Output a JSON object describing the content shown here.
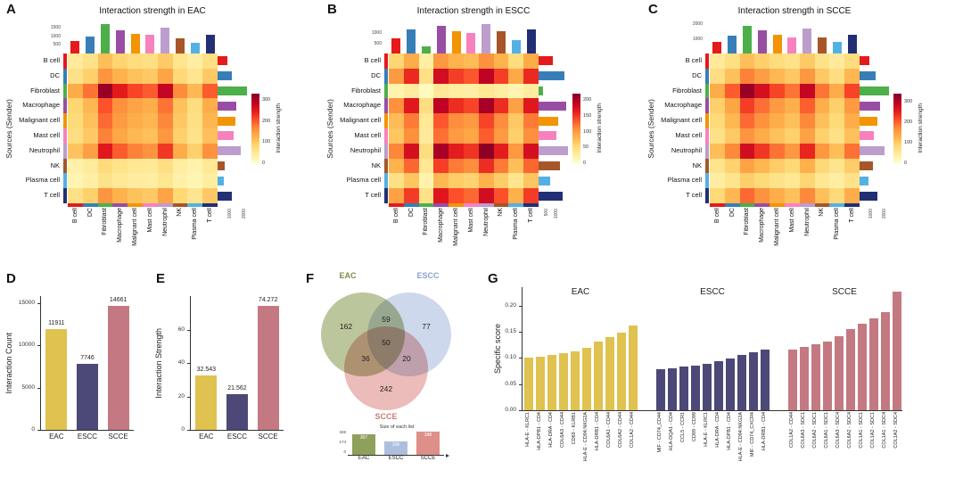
{
  "panel_letters": {
    "A": "A",
    "B": "B",
    "C": "C",
    "D": "D",
    "E": "E",
    "F": "F",
    "G": "G"
  },
  "cell_types": [
    {
      "name": "B cell",
      "color": "#E41A1C"
    },
    {
      "name": "DC",
      "color": "#377EB8"
    },
    {
      "name": "Fibroblast",
      "color": "#4DAF4A"
    },
    {
      "name": "Macrophage",
      "color": "#984EA3"
    },
    {
      "name": "Malignant cell",
      "color": "#F29403"
    },
    {
      "name": "Mast cell",
      "color": "#F781BF"
    },
    {
      "name": "Neutrophil",
      "color": "#BC9DCC"
    },
    {
      "name": "NK",
      "color": "#A65628"
    },
    {
      "name": "Plasma cell",
      "color": "#54B0E4"
    },
    {
      "name": "T cell",
      "color": "#222F75"
    }
  ],
  "heatmap_palette": [
    "#ffffcc",
    "#ffeda0",
    "#fed976",
    "#feb24c",
    "#fd8d3c",
    "#fc4e2a",
    "#e31a1c",
    "#bd0026",
    "#800026"
  ],
  "group_colors": {
    "EAC": "#DFC24F",
    "ESCC": "#4C4877",
    "SCCE": "#C47982"
  },
  "venn_colors": {
    "EAC": "#8FA05A",
    "ESCC": "#AEBEDF",
    "SCCE": "#DE8F8A"
  },
  "venn_label_colors": {
    "EAC": "#7C8C49",
    "ESCC": "#8DA0CC",
    "SCCE": "#C97B76"
  },
  "chart_data": [
    {
      "id": "A",
      "type": "heatmap",
      "title": "Interaction strength in EAC",
      "ylabel": "Sources (Sender)",
      "rows": [
        "B cell",
        "DC",
        "Fibroblast",
        "Macrophage",
        "Malignant cell",
        "Mast cell",
        "Neutrophil",
        "NK",
        "Plasma cell",
        "T cell"
      ],
      "cols": [
        "B cell",
        "DC",
        "Fibroblast",
        "Macrophage",
        "Malignant cell",
        "Mast cell",
        "Neutrophil",
        "NK",
        "Plasma cell",
        "T cell"
      ],
      "legend": {
        "title": "Interaction strength",
        "ticks": [
          300,
          200,
          100,
          0
        ]
      },
      "vmax": 330,
      "top_axis_ticks": [
        1500,
        1000,
        500
      ],
      "right_axis_ticks": [
        1000,
        2000
      ],
      "matrix": [
        [
          46,
          64,
          110,
          87,
          75,
          69,
          98,
          58,
          40,
          69
        ],
        [
          66,
          91,
          157,
          124,
          107,
          99,
          140,
          83,
          58,
          99
        ],
        [
          132,
          182,
          314,
          248,
          215,
          198,
          281,
          165,
          116,
          198
        ],
        [
          86,
          118,
          204,
          161,
          139,
          129,
          182,
          107,
          75,
          129
        ],
        [
          79,
          109,
          188,
          149,
          129,
          119,
          168,
          99,
          69,
          119
        ],
        [
          73,
          100,
          172,
          136,
          118,
          109,
          154,
          91,
          64,
          109
        ],
        [
          106,
          145,
          251,
          198,
          172,
          158,
          224,
          132,
          92,
          158
        ],
        [
          33,
          45,
          78,
          62,
          54,
          50,
          70,
          41,
          29,
          50
        ],
        [
          26,
          36,
          63,
          50,
          43,
          40,
          56,
          33,
          23,
          40
        ],
        [
          66,
          91,
          157,
          124,
          107,
          99,
          140,
          83,
          58,
          99
        ]
      ]
    },
    {
      "id": "B",
      "type": "heatmap",
      "title": "Interaction strength in ESCC",
      "ylabel": "Sources (Sender)",
      "rows": [
        "B cell",
        "DC",
        "Fibroblast",
        "Macrophage",
        "Malignant cell",
        "Mast cell",
        "Neutrophil",
        "NK",
        "Plasma cell",
        "T cell"
      ],
      "cols": [
        "B cell",
        "DC",
        "Fibroblast",
        "Macrophage",
        "Malignant cell",
        "Mast cell",
        "Neutrophil",
        "NK",
        "Plasma cell",
        "T cell"
      ],
      "legend": {
        "title": "Interaction strength",
        "ticks": [
          200,
          150,
          100,
          50,
          0
        ]
      },
      "vmax": 220,
      "top_axis_ticks": [
        1000,
        500
      ],
      "right_axis_ticks": [
        500,
        1000
      ],
      "matrix": [
        [
          57,
          88,
          25,
          101,
          82,
          76,
          107,
          82,
          50,
          88
        ],
        [
          101,
          157,
          45,
          179,
          146,
          134,
          190,
          146,
          90,
          157
        ],
        [
          19,
          29,
          8,
          34,
          27,
          25,
          36,
          27,
          17,
          29
        ],
        [
          107,
          167,
          48,
          190,
          155,
          143,
          202,
          155,
          95,
          167
        ],
        [
          76,
          118,
          34,
          134,
          109,
          101,
          143,
          109,
          67,
          118
        ],
        [
          69,
          108,
          31,
          123,
          100,
          92,
          131,
          100,
          62,
          108
        ],
        [
          113,
          176,
          50,
          202,
          164,
          151,
          214,
          164,
          101,
          176
        ],
        [
          82,
          127,
          36,
          146,
          118,
          109,
          155,
          118,
          73,
          127
        ],
        [
          44,
          69,
          20,
          78,
          64,
          59,
          83,
          64,
          39,
          69
        ],
        [
          95,
          147,
          42,
          168,
          137,
          126,
          179,
          137,
          84,
          147
        ]
      ]
    },
    {
      "id": "C",
      "type": "heatmap",
      "title": "Interaction strength in SCCE",
      "ylabel": "Sources (Sender)",
      "rows": [
        "B cell",
        "DC",
        "Fibroblast",
        "Macrophage",
        "Malignant cell",
        "Mast cell",
        "Neutrophil",
        "NK",
        "Plasma cell",
        "T cell"
      ],
      "cols": [
        "B cell",
        "DC",
        "Fibroblast",
        "Macrophage",
        "Malignant cell",
        "Mast cell",
        "Neutrophil",
        "NK",
        "Plasma cell",
        "T cell"
      ],
      "legend": {
        "title": "Interaction strength",
        "ticks": [
          300,
          200,
          100,
          0
        ]
      },
      "vmax": 340,
      "top_axis_ticks": [
        2000,
        1000
      ],
      "right_axis_ticks": [
        1000,
        2000
      ],
      "matrix": [
        [
          48,
          71,
          113,
          95,
          77,
          65,
          101,
          65,
          48,
          77
        ],
        [
          75,
          112,
          178,
          150,
          122,
          103,
          159,
          103,
          75,
          122
        ],
        [
          136,
          204,
          323,
          272,
          221,
          187,
          289,
          187,
          136,
          221
        ],
        [
          95,
          143,
          226,
          190,
          155,
          131,
          202,
          131,
          95,
          155
        ],
        [
          82,
          122,
          194,
          163,
          133,
          112,
          173,
          112,
          82,
          133
        ],
        [
          68,
          102,
          162,
          136,
          111,
          94,
          145,
          94,
          68,
          111
        ],
        [
          116,
          173,
          275,
          231,
          188,
          159,
          246,
          159,
          116,
          188
        ],
        [
          61,
          92,
          145,
          122,
          99,
          84,
          130,
          84,
          61,
          99
        ],
        [
          41,
          61,
          97,
          82,
          66,
          56,
          87,
          56,
          41,
          66
        ],
        [
          82,
          122,
          194,
          163,
          133,
          112,
          173,
          112,
          82,
          133
        ]
      ]
    },
    {
      "id": "D",
      "type": "bar",
      "ylabel": "Interaction Count",
      "categories": [
        "EAC",
        "ESCC",
        "SCCE"
      ],
      "values": [
        11911,
        7746,
        14661
      ],
      "value_labels": [
        "11911",
        "7746",
        "14661"
      ],
      "yticks": [
        0,
        5000,
        10000,
        15000
      ],
      "ymax": 15800
    },
    {
      "id": "E",
      "type": "bar",
      "ylabel": "Interaction Strength",
      "categories": [
        "EAC",
        "ESCC",
        "SCCE"
      ],
      "values": [
        32.543,
        21.562,
        74.272
      ],
      "value_labels": [
        "32.543",
        "21.562",
        "74.272"
      ],
      "yticks": [
        0,
        20,
        40,
        60
      ],
      "ymax": 80
    },
    {
      "id": "F",
      "type": "venn",
      "sets": [
        "EAC",
        "ESCC",
        "SCCE"
      ],
      "regions": [
        {
          "label": "EAC only",
          "value": 162
        },
        {
          "label": "EAC∩ESCC",
          "value": 59
        },
        {
          "label": "ESCC only",
          "value": 77
        },
        {
          "label": "EAC∩SCCE",
          "value": 36
        },
        {
          "label": "EAC∩ESCC∩SCCE",
          "value": 50
        },
        {
          "label": "ESCC∩SCCE",
          "value": 20
        },
        {
          "label": "SCCE only",
          "value": 242
        }
      ],
      "list_sizes": {
        "title": "Size of each list",
        "categories": [
          "EAC",
          "ESCC",
          "SCCE"
        ],
        "values": [
          307,
          206,
          348
        ],
        "yticks": [
          348,
          174,
          0
        ]
      }
    },
    {
      "id": "G",
      "type": "bar",
      "ylabel": "Specific score",
      "yticks": [
        0,
        0.05,
        0.1,
        0.15,
        0.2
      ],
      "ymax": 0.235,
      "groups": [
        {
          "name": "EAC",
          "labels": [
            "HLA-E - KLRC1",
            "HLA-DPB1 - CD4",
            "HLA-DRA - CD4",
            "COL6A3 - CD44",
            "CD69 - KLRB1",
            "HLA-E - CD94:NKG2A",
            "HLA-DRB1 - CD4",
            "COL6A1 - CD44",
            "COL6A2 - CD44",
            "COL1A2 - CD44"
          ],
          "values": [
            0.1,
            0.102,
            0.105,
            0.109,
            0.113,
            0.119,
            0.131,
            0.139,
            0.149,
            0.162
          ]
        },
        {
          "name": "ESCC",
          "labels": [
            "MIF - CD74_CD44",
            "HLA-DQA1 - CD4",
            "CCL5 - CCR1",
            "CD99 - CD99",
            "HLA-E - KLRC1",
            "HLA-DRA - CD4",
            "HLA-DPB1 - CD4",
            "HLA-E - CD94:NKG2A",
            "MIF - CD74_CXCR4",
            "HLA-DRB1 - CD4"
          ],
          "values": [
            0.078,
            0.08,
            0.083,
            0.086,
            0.089,
            0.093,
            0.099,
            0.105,
            0.11,
            0.116
          ]
        },
        {
          "name": "SCCE",
          "labels": [
            "COL1A2 - CD44",
            "COL6A3 - SDC1",
            "COL6A2 - SDC1",
            "COL6A1 - SDC1",
            "COL6A3 - SDC4",
            "COL6A2 - SDC4",
            "COL1A1 - SDC1",
            "COL1A2 - SDC1",
            "COL1A1 - SDC4",
            "COL1A2 - SDC4"
          ],
          "values": [
            0.116,
            0.121,
            0.126,
            0.132,
            0.141,
            0.155,
            0.166,
            0.176,
            0.187,
            0.226
          ]
        }
      ]
    }
  ]
}
